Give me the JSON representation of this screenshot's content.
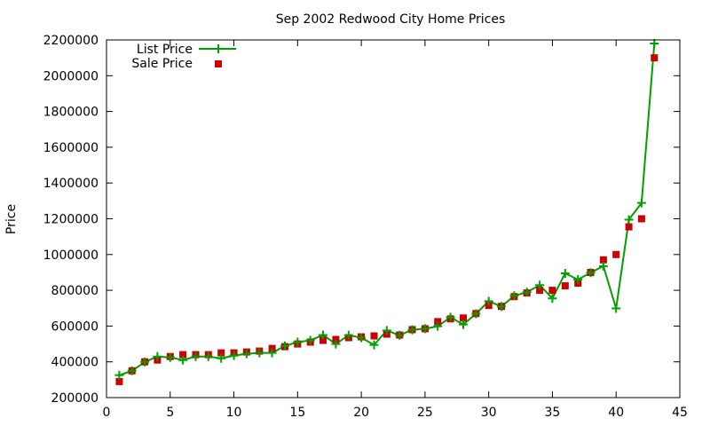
{
  "chart_data": {
    "type": "line",
    "title": "Sep 2002 Redwood City Home Prices",
    "xlabel": "",
    "ylabel": "Price",
    "xlim": [
      0,
      45
    ],
    "ylim": [
      200000,
      2200000
    ],
    "x_ticks": [
      0,
      5,
      10,
      15,
      20,
      25,
      30,
      35,
      40,
      45
    ],
    "y_ticks": [
      200000,
      400000,
      600000,
      800000,
      1000000,
      1200000,
      1400000,
      1600000,
      1800000,
      2000000,
      2200000
    ],
    "grid": false,
    "legend_position": "top-left",
    "series": [
      {
        "name": "List Price",
        "style": "line-plus",
        "color": "#00a000",
        "x": [
          1,
          2,
          3,
          4,
          5,
          6,
          7,
          8,
          9,
          10,
          11,
          12,
          13,
          14,
          15,
          16,
          17,
          18,
          19,
          20,
          21,
          22,
          23,
          24,
          25,
          26,
          27,
          28,
          29,
          30,
          31,
          32,
          33,
          34,
          35,
          36,
          37,
          38,
          39,
          40,
          41,
          42,
          43
        ],
        "values": [
          325000,
          350000,
          399000,
          430000,
          425000,
          410000,
          430000,
          430000,
          420000,
          435000,
          445000,
          450000,
          450000,
          489000,
          510000,
          520000,
          550000,
          500000,
          549000,
          535000,
          495000,
          575000,
          549000,
          579000,
          585000,
          599000,
          649000,
          609000,
          669000,
          739000,
          709000,
          769000,
          789000,
          829000,
          755000,
          895000,
          860000,
          899000,
          935000,
          699000,
          1195000,
          1289000,
          2180000
        ]
      },
      {
        "name": "Sale Price",
        "style": "points-square",
        "color": "#cc0000",
        "x": [
          1,
          2,
          3,
          4,
          5,
          6,
          7,
          8,
          9,
          10,
          11,
          12,
          13,
          14,
          15,
          16,
          17,
          18,
          19,
          20,
          21,
          22,
          23,
          24,
          25,
          26,
          27,
          28,
          29,
          30,
          31,
          32,
          33,
          34,
          35,
          36,
          37,
          38,
          39,
          40,
          41,
          42,
          43
        ],
        "values": [
          290000,
          350000,
          400000,
          410000,
          430000,
          440000,
          440000,
          440000,
          450000,
          450000,
          455000,
          460000,
          475000,
          485000,
          500000,
          510000,
          520000,
          525000,
          535000,
          540000,
          545000,
          555000,
          550000,
          580000,
          585000,
          625000,
          640000,
          645000,
          670000,
          715000,
          710000,
          765000,
          785000,
          800000,
          800000,
          825000,
          840000,
          900000,
          970000,
          1000000,
          1155000,
          1200000,
          2100000
        ]
      }
    ]
  }
}
